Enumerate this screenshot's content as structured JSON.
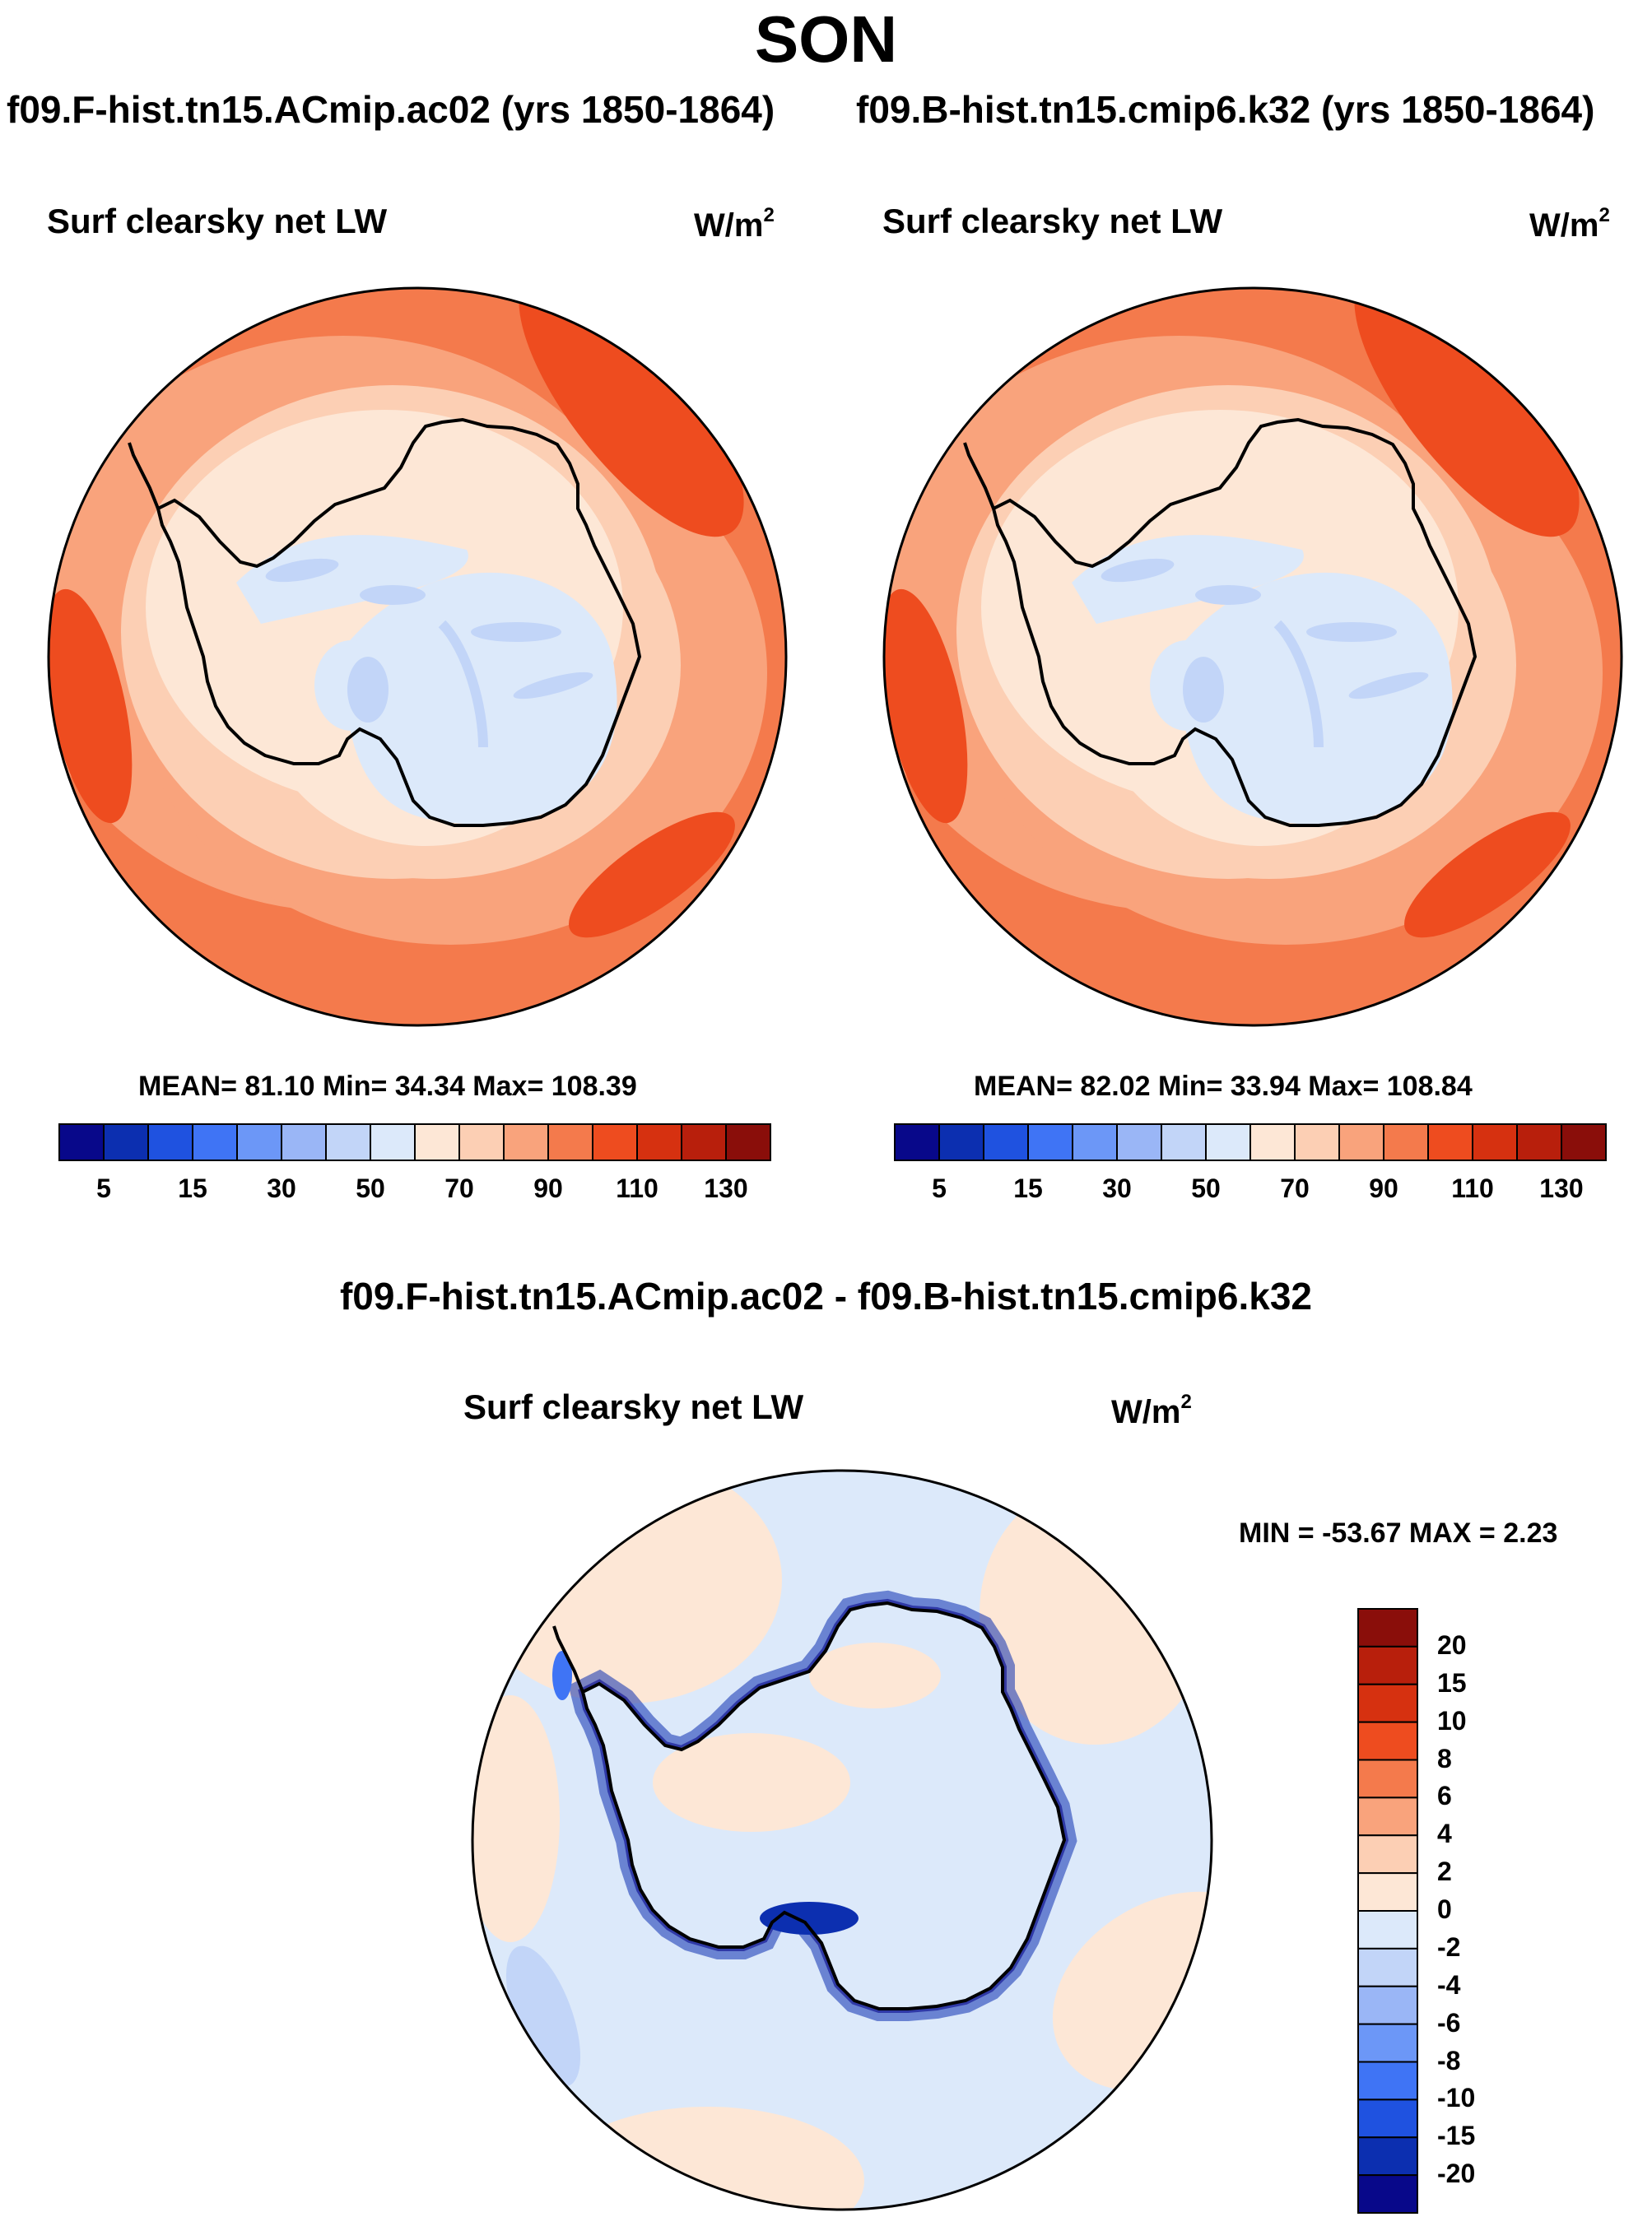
{
  "title": "SON",
  "panels": [
    {
      "run_title": "f09.F-hist.tn15.ACmip.ac02 (yrs 1850-1864)",
      "variable": "Surf clearsky net LW",
      "units": "W/m",
      "units_exp": "2",
      "stats": "MEAN=  81.10  Min=  34.34  Max= 108.39"
    },
    {
      "run_title": "f09.B-hist.tn15.cmip6.k32 (yrs 1850-1864)",
      "variable": "Surf clearsky net LW",
      "units": "W/m",
      "units_exp": "2",
      "stats": "MEAN=  82.02  Min=  33.94  Max= 108.84"
    }
  ],
  "diff": {
    "title": "f09.F-hist.tn15.ACmip.ac02 - f09.B-hist.tn15.cmip6.k32",
    "variable": "Surf clearsky net LW",
    "units": "W/m",
    "units_exp": "2",
    "stats": "MIN = -53.67 MAX =   2.23"
  },
  "colorbar_abs": {
    "labels": [
      "5",
      "15",
      "30",
      "50",
      "70",
      "90",
      "110",
      "130"
    ],
    "colors": [
      "#08088a",
      "#0c2fb0",
      "#1f52e0",
      "#3f74f5",
      "#6c97f7",
      "#9ab6f6",
      "#c2d5f8",
      "#dce9fa",
      "#fde7d6",
      "#fccfb4",
      "#f9a37c",
      "#f47a4c",
      "#ee4c1f",
      "#d63110",
      "#b81f0c",
      "#8a0e0a"
    ]
  },
  "colorbar_diff": {
    "labels": [
      "20",
      "15",
      "10",
      "8",
      "6",
      "4",
      "2",
      "0",
      "-2",
      "-4",
      "-6",
      "-8",
      "-10",
      "-15",
      "-20"
    ],
    "colors": [
      "#8a0e0a",
      "#b81f0c",
      "#d63110",
      "#ee4c1f",
      "#f47a4c",
      "#f9a37c",
      "#fccfb4",
      "#fde7d6",
      "#dce9fa",
      "#c2d5f8",
      "#9ab6f6",
      "#6c97f7",
      "#3f74f5",
      "#1f52e0",
      "#0c2fb0",
      "#08088a"
    ]
  }
}
